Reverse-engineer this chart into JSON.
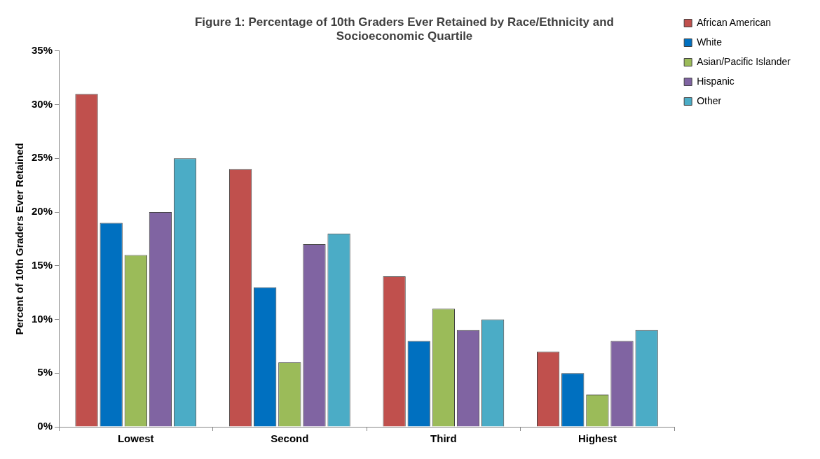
{
  "chart_data": {
    "type": "bar",
    "title": [
      "Figure 1: Percentage of 10th Graders Ever Retained by Race/Ethnicity and",
      "Socioeconomic Quartile"
    ],
    "ylabel": "Percent of 10th Graders Ever Retained",
    "categories": [
      "Lowest",
      "Second",
      "Third",
      "Highest"
    ],
    "series": [
      {
        "name": "African American",
        "color": "#c0504d",
        "values": [
          31,
          24,
          14,
          7
        ]
      },
      {
        "name": "White",
        "color": "#0070c0",
        "values": [
          19,
          13,
          8,
          5
        ]
      },
      {
        "name": "Asian/Pacific Islander",
        "color": "#9bbb59",
        "values": [
          16,
          6,
          11,
          3
        ]
      },
      {
        "name": "Hispanic",
        "color": "#8064a2",
        "values": [
          20,
          17,
          9,
          8
        ]
      },
      {
        "name": "Other",
        "color": "#4bacc6",
        "values": [
          25,
          18,
          10,
          9
        ]
      }
    ],
    "ylim": [
      0,
      35
    ],
    "yticks": [
      {
        "value": 0,
        "label": "0%"
      },
      {
        "value": 5,
        "label": "5%"
      },
      {
        "value": 10,
        "label": "10%"
      },
      {
        "value": 15,
        "label": "15%"
      },
      {
        "value": 20,
        "label": "20%"
      },
      {
        "value": 25,
        "label": "25%"
      },
      {
        "value": 30,
        "label": "30%"
      },
      {
        "value": 35,
        "label": "35%"
      }
    ],
    "grid": false,
    "legend": "top right"
  }
}
